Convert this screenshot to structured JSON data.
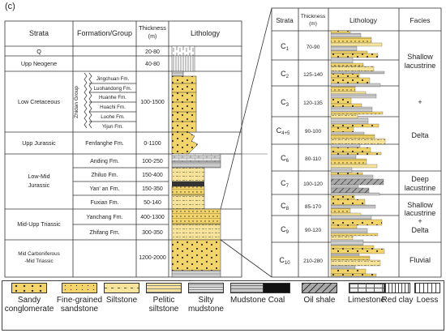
{
  "panel_label": "(c)",
  "left_table": {
    "headers": {
      "strata": "Strata",
      "formation": "Formation/Group",
      "thickness_title": "Thickness",
      "thickness_unit": "(m)",
      "lithology": "Lithology"
    },
    "group_label": "Zhidan Group",
    "rows": [
      {
        "strata": "Q",
        "formation": "",
        "thickness": "20-80"
      },
      {
        "strata": "Upp Neogene",
        "formation": "",
        "thickness": "40-80"
      },
      {
        "strata": "Low Cretaceous",
        "formations": [
          "Jingchuan Fm.",
          "Luohandong Fm.",
          "Huanhe Fm.",
          "Huachi Fm.",
          "Luohe Fm.",
          "Yijun Fm."
        ],
        "thickness": "100-1500"
      },
      {
        "strata": "Upp Jurassic",
        "formation": "Fenfanghe Fm.",
        "thickness": "0-1100"
      },
      {
        "strata": "Low-Mid Jurassic",
        "formations": [
          "Anding Fm.",
          "Zhiluo Fm.",
          "Yan' an Fm.",
          "Fuxian Fm."
        ],
        "thicknesses": [
          "100-250",
          "150-400",
          "150-350",
          "50-140"
        ]
      },
      {
        "strata": "Mid-Upp Triassic",
        "formations": [
          "Yanchang Fm.",
          "Zhifang Fm."
        ],
        "thicknesses": [
          "400-1300",
          "300-350"
        ]
      },
      {
        "strata_lines": [
          "Mid Carboniferous",
          "-Mid Triassic"
        ],
        "formation": "",
        "thickness": "1200-2000"
      }
    ]
  },
  "right_table": {
    "headers": {
      "strata": "Strata",
      "thickness_title": "Thickness",
      "thickness_unit": "(m)",
      "lithology": "Lithology",
      "facies": "Facies"
    },
    "rows": [
      {
        "unit": "C1",
        "thickness": "70-90"
      },
      {
        "unit": "C2",
        "thickness": "125-140"
      },
      {
        "unit": "C3",
        "thickness": "120-135"
      },
      {
        "unit": "C4+5",
        "thickness": "90-100"
      },
      {
        "unit": "C6",
        "thickness": "80-110"
      },
      {
        "unit": "C7",
        "thickness": "100-120"
      },
      {
        "unit": "C8",
        "thickness": "85-170"
      },
      {
        "unit": "C9",
        "thickness": "90-120"
      },
      {
        "unit": "C10",
        "thickness": "210-280"
      }
    ],
    "facies": {
      "shallow_lacustrine_top": [
        "Shallow",
        "lacustrine"
      ],
      "plus": "+",
      "delta": "Delta",
      "deep_lacustrine": [
        "Deep",
        "lacustrine"
      ],
      "shallow_lacustrine_delta": [
        "Shallow",
        "lacustrine",
        "+",
        "Delta"
      ],
      "fluvial": "Fluvial"
    }
  },
  "legend": [
    {
      "label_lines": [
        "Sandy",
        "conglomerate"
      ],
      "icon": "sandy-conglomerate-pattern"
    },
    {
      "label_lines": [
        "Fine-grained",
        "sandstone"
      ],
      "icon": "fine-sandstone-pattern"
    },
    {
      "label_lines": [
        "Siltstone"
      ],
      "icon": "siltstone-pattern"
    },
    {
      "label_lines": [
        "Pelitic",
        "siltstone"
      ],
      "icon": "pelitic-siltstone-pattern"
    },
    {
      "label_lines": [
        "Silty",
        "mudstone"
      ],
      "icon": "silty-mudstone-pattern"
    },
    {
      "label_lines": [
        "Mudstone"
      ],
      "icon": "mudstone-pattern"
    },
    {
      "label_lines": [
        "Coal"
      ],
      "icon": "coal-pattern"
    },
    {
      "label_lines": [
        "Oil shale"
      ],
      "icon": "oil-shale-pattern"
    },
    {
      "label_lines": [
        "Limestone"
      ],
      "icon": "limestone-pattern"
    },
    {
      "label_lines": [
        "Red clay"
      ],
      "icon": "red-clay-pattern"
    },
    {
      "label_lines": [
        "Loess"
      ],
      "icon": "loess-pattern"
    }
  ],
  "colors": {
    "sand": "#f2d46b",
    "sand_light": "#f7e49a",
    "gray": "#b9b9b9",
    "line": "#333333"
  }
}
